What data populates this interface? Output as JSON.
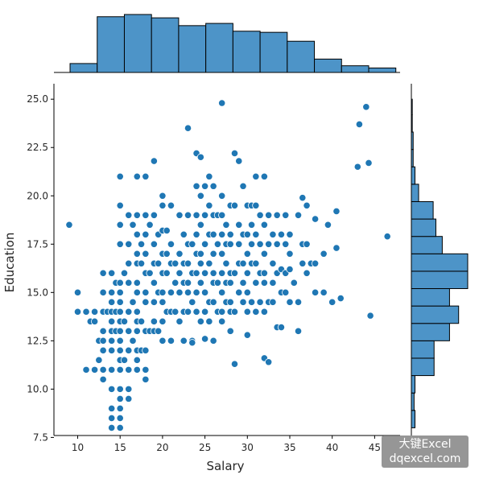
{
  "chart_data": {
    "type": "scatter",
    "title": "",
    "xlabel": "Salary",
    "ylabel": "Education",
    "xlim": [
      7.2,
      48.0
    ],
    "ylim": [
      7.6,
      25.8
    ],
    "xticks": [
      "10",
      "15",
      "20",
      "25",
      "30",
      "35",
      "40",
      "45"
    ],
    "yticks": [
      "7.5",
      "10.0",
      "12.5",
      "15.0",
      "17.5",
      "20.0",
      "22.5",
      "25.0"
    ],
    "grid": false,
    "legend": "none",
    "color": "#1f77b4",
    "hist_fill": "#4d94c8",
    "x_marginal_hist": {
      "bin_edges": [
        9.1,
        12.3,
        15.5,
        18.7,
        21.9,
        25.1,
        28.3,
        31.5,
        34.7,
        37.9,
        41.1,
        44.3,
        47.5
      ],
      "counts": [
        8,
        50,
        52,
        49,
        42,
        44,
        37,
        36,
        28,
        12,
        6,
        4
      ]
    },
    "y_marginal_hist": {
      "bin_edges": [
        8.0,
        8.9,
        9.8,
        10.7,
        11.6,
        12.5,
        13.4,
        14.3,
        15.2,
        16.1,
        17.0,
        17.9,
        18.8,
        19.7,
        20.6,
        21.5,
        22.4,
        23.3,
        24.2,
        25.0
      ],
      "counts": [
        4,
        3,
        4,
        25,
        25,
        42,
        52,
        42,
        62,
        62,
        34,
        27,
        24,
        8,
        4,
        2,
        2,
        1,
        1
      ]
    },
    "points": [
      [
        9,
        18.5
      ],
      [
        10,
        15
      ],
      [
        10,
        14
      ],
      [
        11,
        14
      ],
      [
        11,
        11
      ],
      [
        11.5,
        13.5
      ],
      [
        12,
        13.5
      ],
      [
        12,
        11
      ],
      [
        12,
        14
      ],
      [
        12.5,
        11.5
      ],
      [
        12.5,
        12.5
      ],
      [
        13,
        16
      ],
      [
        13,
        15
      ],
      [
        13,
        14
      ],
      [
        13,
        13
      ],
      [
        13,
        12.5
      ],
      [
        13,
        12
      ],
      [
        13,
        11
      ],
      [
        13,
        10.5
      ],
      [
        13.5,
        14
      ],
      [
        14,
        16
      ],
      [
        14,
        15
      ],
      [
        14,
        14.5
      ],
      [
        14,
        14
      ],
      [
        14,
        13.5
      ],
      [
        14,
        13
      ],
      [
        14,
        12.5
      ],
      [
        14,
        12
      ],
      [
        14,
        11
      ],
      [
        14,
        10
      ],
      [
        14,
        9
      ],
      [
        14,
        8.5
      ],
      [
        14,
        8
      ],
      [
        14.5,
        15.5
      ],
      [
        14.5,
        14
      ],
      [
        14.5,
        13
      ],
      [
        15,
        21
      ],
      [
        15,
        19.5
      ],
      [
        15,
        18.5
      ],
      [
        15,
        17.5
      ],
      [
        15,
        15.5
      ],
      [
        15,
        15
      ],
      [
        15,
        14.5
      ],
      [
        15,
        14
      ],
      [
        15,
        13.5
      ],
      [
        15,
        13
      ],
      [
        15,
        12.5
      ],
      [
        15,
        12
      ],
      [
        15,
        11.5
      ],
      [
        15,
        11
      ],
      [
        15,
        10
      ],
      [
        15,
        9.5
      ],
      [
        15,
        9
      ],
      [
        15,
        8.5
      ],
      [
        15,
        8
      ],
      [
        15.5,
        16
      ],
      [
        15.5,
        13.5
      ],
      [
        15.5,
        11.5
      ],
      [
        16,
        19
      ],
      [
        16,
        17.5
      ],
      [
        16,
        16.5
      ],
      [
        16,
        15.5
      ],
      [
        16,
        14
      ],
      [
        16,
        13
      ],
      [
        16,
        12
      ],
      [
        16,
        11
      ],
      [
        16,
        10
      ],
      [
        16,
        9.5
      ],
      [
        16.5,
        18.5
      ],
      [
        16.5,
        14.5
      ],
      [
        16.5,
        12.5
      ],
      [
        17,
        21
      ],
      [
        17,
        19
      ],
      [
        17,
        18
      ],
      [
        17,
        17
      ],
      [
        17,
        16.5
      ],
      [
        17,
        15.5
      ],
      [
        17,
        15
      ],
      [
        17,
        14
      ],
      [
        17,
        13.5
      ],
      [
        17,
        13
      ],
      [
        17,
        12
      ],
      [
        17,
        11.5
      ],
      [
        17,
        11
      ],
      [
        17.5,
        17.5
      ],
      [
        17.5,
        16.5
      ],
      [
        17.5,
        13.5
      ],
      [
        17.5,
        12
      ],
      [
        18,
        21
      ],
      [
        18,
        19
      ],
      [
        18,
        18
      ],
      [
        18,
        17
      ],
      [
        18,
        16
      ],
      [
        18,
        15
      ],
      [
        18,
        14.5
      ],
      [
        18,
        13
      ],
      [
        18,
        12
      ],
      [
        18,
        11
      ],
      [
        18,
        10.5
      ],
      [
        18.5,
        18.5
      ],
      [
        18.5,
        16
      ],
      [
        18.5,
        13
      ],
      [
        19,
        21.8
      ],
      [
        19,
        19
      ],
      [
        19,
        17.5
      ],
      [
        19,
        16.5
      ],
      [
        19,
        15.5
      ],
      [
        19,
        14.5
      ],
      [
        19,
        13.5
      ],
      [
        19,
        13
      ],
      [
        19.5,
        18
      ],
      [
        19.5,
        16.5
      ],
      [
        19.5,
        15
      ],
      [
        19.5,
        13
      ],
      [
        20,
        20
      ],
      [
        20,
        19.5
      ],
      [
        20,
        18.2
      ],
      [
        20,
        17
      ],
      [
        20,
        16
      ],
      [
        20,
        15
      ],
      [
        20,
        14.5
      ],
      [
        20,
        13.5
      ],
      [
        20,
        12.5
      ],
      [
        20.5,
        18.2
      ],
      [
        20.5,
        17
      ],
      [
        20.5,
        16
      ],
      [
        20.5,
        14
      ],
      [
        21,
        19.5
      ],
      [
        21,
        17.5
      ],
      [
        21,
        16.5
      ],
      [
        21,
        15
      ],
      [
        21,
        14
      ],
      [
        21,
        12.5
      ],
      [
        21.5,
        16.5
      ],
      [
        21.5,
        15.5
      ],
      [
        21.5,
        14
      ],
      [
        22,
        19
      ],
      [
        22,
        17
      ],
      [
        22,
        16
      ],
      [
        22,
        15
      ],
      [
        22,
        13.5
      ],
      [
        22.5,
        18
      ],
      [
        22.5,
        16.5
      ],
      [
        22.5,
        15.5
      ],
      [
        22.5,
        14
      ],
      [
        22.5,
        12.5
      ],
      [
        23,
        23.5
      ],
      [
        23,
        19
      ],
      [
        23,
        17.5
      ],
      [
        23,
        16.5
      ],
      [
        23,
        15.5
      ],
      [
        23,
        15
      ],
      [
        23,
        14
      ],
      [
        23.5,
        17.5
      ],
      [
        23.5,
        16
      ],
      [
        23.5,
        14.5
      ],
      [
        23.5,
        12.5
      ],
      [
        23.5,
        12.4
      ],
      [
        24,
        22.2
      ],
      [
        24,
        20.5
      ],
      [
        24,
        19
      ],
      [
        24,
        18
      ],
      [
        24,
        17
      ],
      [
        24,
        16
      ],
      [
        24,
        15
      ],
      [
        24,
        14
      ],
      [
        24.5,
        22
      ],
      [
        24.5,
        20
      ],
      [
        24.5,
        18.5
      ],
      [
        24.5,
        17
      ],
      [
        24.5,
        16.5
      ],
      [
        24.5,
        15.5
      ],
      [
        24.5,
        13.5
      ],
      [
        25,
        20.5
      ],
      [
        25,
        19
      ],
      [
        25,
        17.5
      ],
      [
        25,
        16
      ],
      [
        25,
        15
      ],
      [
        25,
        14
      ],
      [
        25,
        12.6
      ],
      [
        25.5,
        21
      ],
      [
        25.5,
        19.5
      ],
      [
        25.5,
        18
      ],
      [
        25.5,
        16.5
      ],
      [
        25.5,
        14.5
      ],
      [
        25.5,
        13.5
      ],
      [
        26,
        20.5
      ],
      [
        26,
        19
      ],
      [
        26,
        18
      ],
      [
        26,
        17
      ],
      [
        26,
        16
      ],
      [
        26,
        15.5
      ],
      [
        26,
        14.5
      ],
      [
        26,
        12.5
      ],
      [
        26.5,
        19
      ],
      [
        26.5,
        17.5
      ],
      [
        26.5,
        15.5
      ],
      [
        26.5,
        14
      ],
      [
        27,
        24.8
      ],
      [
        27,
        20
      ],
      [
        27,
        19
      ],
      [
        27,
        18
      ],
      [
        27,
        17
      ],
      [
        27,
        16
      ],
      [
        27,
        15
      ],
      [
        27,
        14
      ],
      [
        27,
        13.5
      ],
      [
        27.5,
        18.5
      ],
      [
        27.5,
        17.5
      ],
      [
        27.5,
        16.5
      ],
      [
        27.5,
        15.5
      ],
      [
        27.5,
        14.5
      ],
      [
        28,
        19.5
      ],
      [
        28,
        18
      ],
      [
        28,
        17.5
      ],
      [
        28,
        16
      ],
      [
        28,
        15.5
      ],
      [
        28,
        14.5
      ],
      [
        28,
        14
      ],
      [
        28,
        13
      ],
      [
        28.5,
        22.2
      ],
      [
        28.5,
        19.5
      ],
      [
        28.5,
        16
      ],
      [
        28.5,
        14
      ],
      [
        28.5,
        11.3
      ],
      [
        29,
        21.8
      ],
      [
        29,
        18.5
      ],
      [
        29,
        17.5
      ],
      [
        29,
        16.5
      ],
      [
        29,
        15
      ],
      [
        29.5,
        20.5
      ],
      [
        29.5,
        18
      ],
      [
        29.5,
        16.5
      ],
      [
        29.5,
        15.5
      ],
      [
        29.5,
        14.5
      ],
      [
        30,
        19.5
      ],
      [
        30,
        18
      ],
      [
        30,
        17
      ],
      [
        30,
        16
      ],
      [
        30,
        15
      ],
      [
        30,
        14
      ],
      [
        30,
        12.8
      ],
      [
        30.5,
        19.5
      ],
      [
        30.5,
        18.5
      ],
      [
        30.5,
        17.5
      ],
      [
        30.5,
        16.5
      ],
      [
        30.5,
        14.5
      ],
      [
        31,
        21
      ],
      [
        31,
        19.5
      ],
      [
        31,
        18
      ],
      [
        31,
        16.5
      ],
      [
        31,
        15.5
      ],
      [
        31,
        14
      ],
      [
        31.5,
        19
      ],
      [
        31.5,
        17.5
      ],
      [
        31.5,
        16
      ],
      [
        31.5,
        14.5
      ],
      [
        32,
        21
      ],
      [
        32,
        18.5
      ],
      [
        32,
        17
      ],
      [
        32,
        16
      ],
      [
        32,
        15.5
      ],
      [
        32,
        14
      ],
      [
        32,
        11.6
      ],
      [
        32.5,
        19
      ],
      [
        32.5,
        17.5
      ],
      [
        32.5,
        14.5
      ],
      [
        32.5,
        11.4
      ],
      [
        33,
        18
      ],
      [
        33,
        16.5
      ],
      [
        33,
        15.5
      ],
      [
        33,
        14.5
      ],
      [
        33.5,
        19
      ],
      [
        33.5,
        17.5
      ],
      [
        33.5,
        16
      ],
      [
        33.5,
        13.2
      ],
      [
        34,
        18
      ],
      [
        34,
        16.2
      ],
      [
        34,
        15
      ],
      [
        34,
        13.2
      ],
      [
        34.5,
        19
      ],
      [
        34.5,
        17.5
      ],
      [
        34.5,
        16
      ],
      [
        34.5,
        15
      ],
      [
        35,
        18
      ],
      [
        35,
        17
      ],
      [
        35,
        16.2
      ],
      [
        35,
        14.5
      ],
      [
        35.5,
        15.5
      ],
      [
        36,
        19
      ],
      [
        36,
        14.5
      ],
      [
        36,
        13
      ],
      [
        36.5,
        19.9
      ],
      [
        36.5,
        17.5
      ],
      [
        36.5,
        16.5
      ],
      [
        37,
        19.5
      ],
      [
        37,
        17.5
      ],
      [
        37,
        16
      ],
      [
        37.5,
        16.5
      ],
      [
        38,
        18.8
      ],
      [
        38,
        16.5
      ],
      [
        38,
        15
      ],
      [
        39,
        17
      ],
      [
        39,
        15
      ],
      [
        39.5,
        18.5
      ],
      [
        40,
        14.5
      ],
      [
        40.5,
        19.2
      ],
      [
        40.5,
        17.3
      ],
      [
        41,
        14.7
      ],
      [
        43,
        21.5
      ],
      [
        43.2,
        23.7
      ],
      [
        44,
        24.6
      ],
      [
        44.3,
        21.7
      ],
      [
        44.5,
        13.8
      ],
      [
        46.5,
        17.9
      ]
    ]
  },
  "watermark": {
    "line1": "大键Excel",
    "line2": "dqexcel.com"
  }
}
